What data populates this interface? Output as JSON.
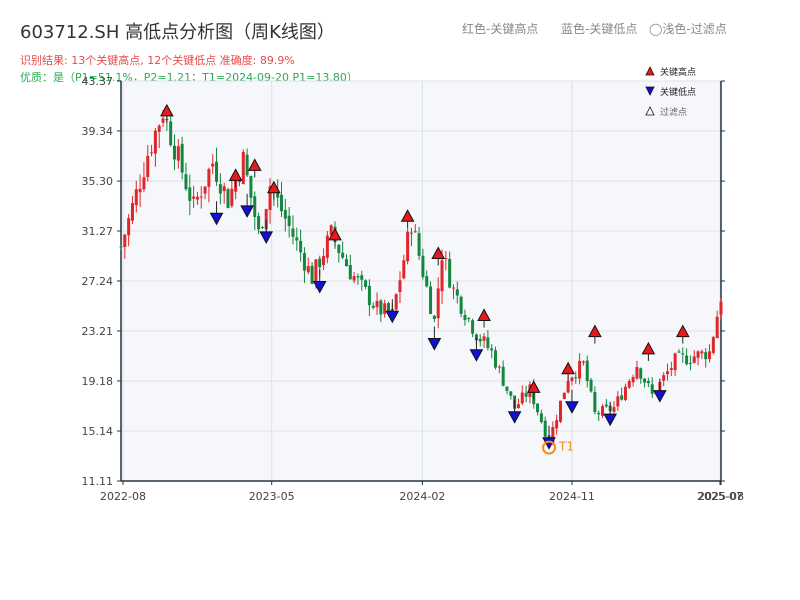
{
  "title": "603712.SH 高低点分析图（周K线图）",
  "header_legend": {
    "red": "红色-关键高点",
    "blue": "蓝色-关键低点",
    "light": "◯浅色-过滤点"
  },
  "subtitle_result": "识别结果: 13个关键高点, 12个关键低点  准确度: 89.9%",
  "subtitle_quality": "优质：是（P1=51.1%，P2=1.21；T1=2024-09-20 P1=13.80）",
  "colors": {
    "up": "#e0262b",
    "down": "#13863f",
    "high_marker": "#e8191a",
    "low_marker": "#1010d8",
    "t1_circle": "#f0921a",
    "plot_bg": "#f6f7fa",
    "grid": "#dde0e6",
    "axis": "#223344"
  },
  "chart_data": {
    "type": "candlestick",
    "title": "603712.SH 高低点分析图（周K线图）",
    "period": "weekly",
    "ylim": [
      11.11,
      43.37
    ],
    "y_ticks": [
      "11.11",
      "15.14",
      "19.18",
      "23.21",
      "27.24",
      "31.27",
      "35.30",
      "39.34",
      "43.37"
    ],
    "x_range": [
      "2022-07-29",
      "2025-08-01"
    ],
    "x_ticks": [
      "2022-08",
      "2023-05",
      "2024-02",
      "2024-11",
      "2025-07",
      "2025-08"
    ],
    "legend": {
      "placement": "top-right",
      "items": [
        {
          "symbol": "red-up-triangle",
          "label": "关键高点"
        },
        {
          "symbol": "blue-down-triangle",
          "label": "关键低点"
        },
        {
          "symbol": "hollow-triangle",
          "label": "过滤点"
        }
      ]
    },
    "waypoints": [
      [
        "2022-07-29",
        30.0
      ],
      [
        "2022-09-16",
        37.5
      ],
      [
        "2022-10-14",
        41.0
      ],
      [
        "2022-12-09",
        33.2
      ],
      [
        "2023-01-13",
        36.8
      ],
      [
        "2023-02-10",
        33.8
      ],
      [
        "2023-03-10",
        37.0
      ],
      [
        "2023-04-07",
        31.0
      ],
      [
        "2023-04-28",
        35.0
      ],
      [
        "2023-07-14",
        27.5
      ],
      [
        "2023-08-18",
        31.0
      ],
      [
        "2023-09-22",
        28.0
      ],
      [
        "2023-11-10",
        25.0
      ],
      [
        "2023-12-08",
        24.5
      ],
      [
        "2024-01-12",
        32.0
      ],
      [
        "2024-02-23",
        24.0
      ],
      [
        "2024-03-08",
        29.5
      ],
      [
        "2024-03-29",
        26.5
      ],
      [
        "2024-05-10",
        23.0
      ],
      [
        "2024-06-07",
        21.5
      ],
      [
        "2024-07-19",
        17.0
      ],
      [
        "2024-08-16",
        18.5
      ],
      [
        "2024-09-20",
        14.3
      ],
      [
        "2024-10-25",
        19.5
      ],
      [
        "2024-11-22",
        20.5
      ],
      [
        "2024-12-13",
        16.5
      ],
      [
        "2025-01-17",
        17.0
      ],
      [
        "2025-02-28",
        20.5
      ],
      [
        "2025-03-28",
        18.0
      ],
      [
        "2025-05-09",
        20.8
      ],
      [
        "2025-07-11",
        21.5
      ],
      [
        "2025-08-01",
        26.0
      ]
    ],
    "key_highs": [
      {
        "date": "2022-10-21",
        "price": 40.8
      },
      {
        "date": "2023-02-24",
        "price": 35.6
      },
      {
        "date": "2023-03-31",
        "price": 36.4
      },
      {
        "date": "2023-05-05",
        "price": 34.6
      },
      {
        "date": "2023-08-25",
        "price": 30.8
      },
      {
        "date": "2024-01-05",
        "price": 32.3
      },
      {
        "date": "2024-03-01",
        "price": 29.3
      },
      {
        "date": "2024-05-24",
        "price": 24.3
      },
      {
        "date": "2024-08-23",
        "price": 18.5
      },
      {
        "date": "2024-10-25",
        "price": 20.0
      },
      {
        "date": "2024-12-13",
        "price": 23.0
      },
      {
        "date": "2025-03-21",
        "price": 21.6
      },
      {
        "date": "2025-05-23",
        "price": 23.0
      }
    ],
    "key_lows": [
      {
        "date": "2023-01-20",
        "price": 32.7
      },
      {
        "date": "2023-03-17",
        "price": 33.3
      },
      {
        "date": "2023-04-21",
        "price": 31.2
      },
      {
        "date": "2023-07-28",
        "price": 27.2
      },
      {
        "date": "2023-12-08",
        "price": 24.8
      },
      {
        "date": "2024-02-23",
        "price": 22.6
      },
      {
        "date": "2024-05-10",
        "price": 21.7
      },
      {
        "date": "2024-07-19",
        "price": 16.7
      },
      {
        "date": "2024-09-20",
        "price": 14.6
      },
      {
        "date": "2024-11-01",
        "price": 17.5
      },
      {
        "date": "2025-01-10",
        "price": 16.5
      },
      {
        "date": "2025-04-11",
        "price": 18.4
      }
    ],
    "t1": {
      "date": "2024-09-20",
      "price": 13.8,
      "label": "T1"
    }
  }
}
